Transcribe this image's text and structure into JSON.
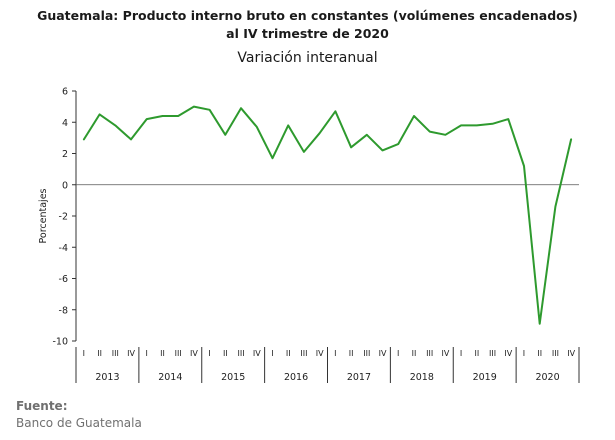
{
  "header": {
    "title_line1": "Guatemala: Producto interno bruto en constantes (volúmenes encadenados)",
    "title_line2": "al IV trimestre de 2020",
    "subtitle": "Variación interanual"
  },
  "footer": {
    "source_label": "Fuente:",
    "source_text": "Banco de Guatemala"
  },
  "chart_data": {
    "type": "line",
    "title": "Guatemala: Producto interno bruto en constantes (volúmenes encadenados) al IV trimestre de 2020",
    "subtitle": "Variación interanual",
    "ylabel": "Porcentajes",
    "xlabel": "",
    "ylim": [
      -10,
      6
    ],
    "yticks": [
      6,
      4,
      2,
      0,
      -2,
      -4,
      -6,
      -8,
      -10
    ],
    "grid": false,
    "line_color": "#2e9a2e",
    "quarter_labels": [
      "I",
      "II",
      "III",
      "IV"
    ],
    "years": [
      "2013",
      "2014",
      "2015",
      "2016",
      "2017",
      "2018",
      "2019",
      "2020"
    ],
    "series": [
      {
        "values": [
          2.9,
          4.5,
          3.8,
          2.9,
          4.2,
          4.4,
          4.4,
          5.0,
          4.8,
          3.2,
          4.9,
          3.7,
          1.7,
          3.8,
          2.1,
          3.3,
          4.7,
          2.4,
          3.2,
          2.2,
          2.6,
          4.4,
          3.4,
          3.2,
          3.8,
          3.8,
          3.9,
          4.2,
          1.2,
          -8.9,
          -1.4,
          2.9
        ]
      }
    ]
  }
}
